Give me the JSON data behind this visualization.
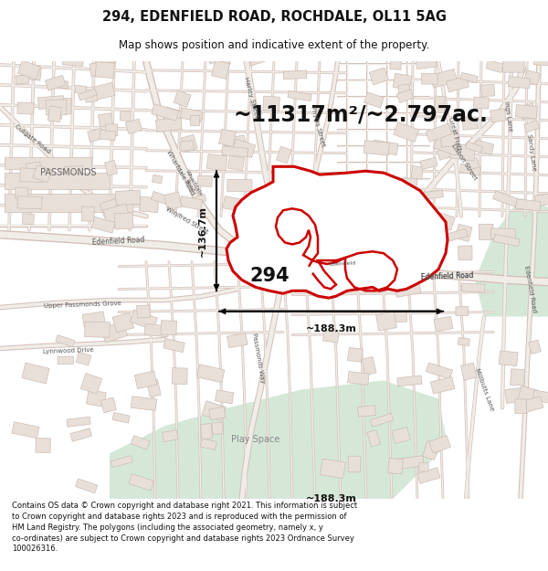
{
  "title_line1": "294, EDENFIELD ROAD, ROCHDALE, OL11 5AG",
  "title_line2": "Map shows position and indicative extent of the property.",
  "area_text": "~11317m²/~2.797ac.",
  "label_294": "294",
  "dim_vertical": "~136.7m",
  "dim_horizontal": "~188.3m",
  "footer_text": "Contains OS data © Crown copyright and database right 2021. This information is subject to Crown copyright and database rights 2023 and is reproduced with the permission of HM Land Registry. The polygons (including the associated geometry, namely x, y co-ordinates) are subject to Crown copyright and database rights 2023 Ordnance Survey 100026316.",
  "map_bg": "#f7f4f0",
  "road_color": "#e8b8b0",
  "road_fill": "#ffffff",
  "building_face": "#e8e0d8",
  "building_edge": "#ccbcb4",
  "property_color": "#cc0000",
  "property_fill": "#ffffff",
  "title_bg": "#ffffff",
  "green_area": "#d5e8d8",
  "dim_color": "#111111",
  "label_color": "#555555",
  "passmonds_color": "#888888"
}
